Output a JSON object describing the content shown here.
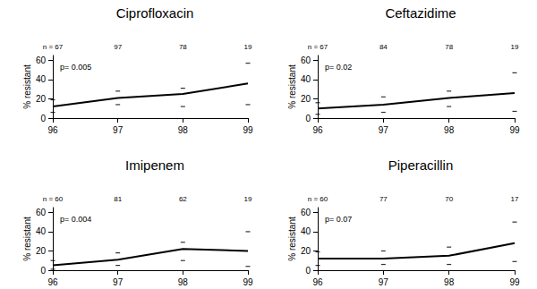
{
  "chart_data": [
    {
      "type": "line",
      "title": "Ciprofloxacin",
      "ylabel": "% resistant",
      "annotation": "p= 0.005",
      "categories": [
        "96",
        "97",
        "98",
        "99"
      ],
      "top_labels": [
        "n = 67",
        "97",
        "78",
        "19"
      ],
      "values": [
        12,
        21,
        25,
        36
      ],
      "ci_low": [
        6,
        14,
        12,
        14
      ],
      "ci_high": [
        19,
        28,
        31,
        57
      ],
      "color": "#000000",
      "ylim": [
        0,
        65
      ],
      "yticks": [
        0,
        20,
        40,
        60
      ],
      "grid": false
    },
    {
      "type": "line",
      "title": "Ceftazidime",
      "ylabel": "% resistant",
      "annotation": "p= 0.02",
      "categories": [
        "96",
        "97",
        "98",
        "99"
      ],
      "top_labels": [
        "n = 67",
        "84",
        "78",
        "19"
      ],
      "values": [
        10,
        14,
        21,
        26
      ],
      "ci_low": [
        4,
        6,
        12,
        7
      ],
      "ci_high": [
        16,
        22,
        28,
        47
      ],
      "color": "#000000",
      "ylim": [
        0,
        65
      ],
      "yticks": [
        0,
        20,
        40,
        60
      ],
      "grid": false
    },
    {
      "type": "line",
      "title": "Imipenem",
      "ylabel": "% resistant",
      "annotation": "p= 0.004",
      "categories": [
        "96",
        "97",
        "98",
        "99"
      ],
      "top_labels": [
        "n = 60",
        "81",
        "62",
        "19"
      ],
      "values": [
        5,
        11,
        22,
        20
      ],
      "ci_low": [
        1,
        5,
        10,
        4
      ],
      "ci_high": [
        10,
        18,
        29,
        40
      ],
      "color": "#000000",
      "ylim": [
        0,
        65
      ],
      "yticks": [
        0,
        20,
        40,
        60
      ],
      "grid": false
    },
    {
      "type": "line",
      "title": "Piperacillin",
      "ylabel": "% resistant",
      "annotation": "p= 0.07",
      "categories": [
        "96",
        "97",
        "98",
        "99"
      ],
      "top_labels": [
        "n = 60",
        "77",
        "70",
        "17"
      ],
      "values": [
        12,
        12,
        15,
        28
      ],
      "ci_low": [
        5,
        6,
        6,
        9
      ],
      "ci_high": [
        19,
        20,
        24,
        50
      ],
      "color": "#000000",
      "ylim": [
        0,
        65
      ],
      "yticks": [
        0,
        20,
        40,
        60
      ],
      "grid": false
    }
  ]
}
